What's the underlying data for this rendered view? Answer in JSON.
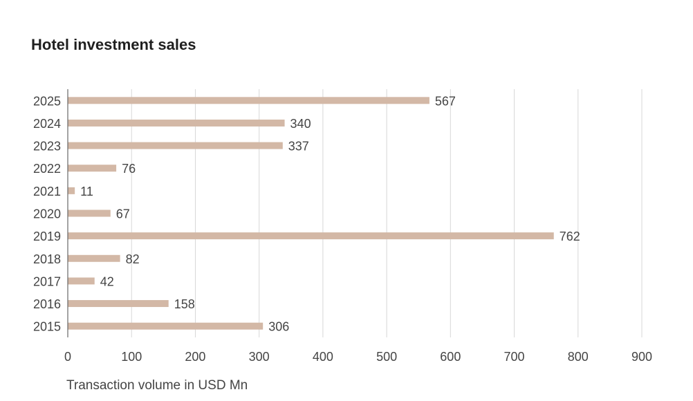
{
  "chart_data": {
    "type": "bar",
    "orientation": "horizontal",
    "title": "Hotel investment sales",
    "xlabel": "Transaction volume in USD Mn",
    "ylabel": "",
    "categories": [
      "2025",
      "2024",
      "2023",
      "2022",
      "2021",
      "2020",
      "2019",
      "2018",
      "2017",
      "2016",
      "2015"
    ],
    "values": [
      567,
      340,
      337,
      76,
      11,
      67,
      762,
      82,
      42,
      158,
      306
    ],
    "xlim": [
      0,
      900
    ],
    "xticks": [
      0,
      100,
      200,
      300,
      400,
      500,
      600,
      700,
      800,
      900
    ],
    "grid": "vertical",
    "legend": "none",
    "colors": {
      "bar": "#d3b8a6",
      "grid": "#d7d7d7",
      "axis": "#666666",
      "text": "#444444"
    }
  }
}
